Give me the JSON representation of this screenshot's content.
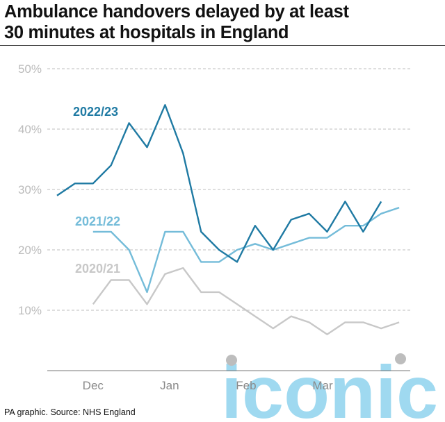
{
  "header": {
    "title_line1": "Ambulance handovers delayed by at least",
    "title_line2": "30 minutes at hospitals in England"
  },
  "footer": {
    "source": "PA graphic. Source: NHS England"
  },
  "watermark": {
    "text": "iconic",
    "color": "#8fd3ee"
  },
  "chart_data": {
    "type": "line",
    "ylim": [
      0,
      50
    ],
    "y_ticks": [
      10,
      20,
      30,
      40,
      50
    ],
    "y_tick_labels": [
      "10%",
      "20%",
      "30%",
      "40%",
      "50%"
    ],
    "x_tick_labels": [
      "Dec",
      "Jan",
      "Feb",
      "Mar"
    ],
    "x_tick_positions": [
      2,
      6.25,
      10.5,
      14.75
    ],
    "grid": true,
    "series": [
      {
        "name": "2022/23",
        "color": "#1f7aa3",
        "x": [
          0,
          1,
          2,
          3,
          4,
          5,
          6,
          7,
          8,
          9,
          10,
          11,
          12,
          13,
          14,
          15,
          16,
          17,
          18
        ],
        "values": [
          29,
          31,
          31,
          34,
          41,
          37,
          44,
          36,
          23,
          20,
          18,
          24,
          20,
          25,
          26,
          23,
          28,
          23,
          28
        ]
      },
      {
        "name": "2021/22",
        "color": "#74bcd9",
        "x": [
          2,
          3,
          4,
          5,
          6,
          7,
          8,
          9,
          10,
          11,
          12,
          13,
          14,
          15,
          16,
          17,
          18,
          19
        ],
        "values": [
          23,
          23,
          20,
          13,
          23,
          23,
          18,
          18,
          20,
          21,
          20,
          21,
          22,
          22,
          24,
          24,
          26,
          27
        ]
      },
      {
        "name": "2020/21",
        "color": "#c8c8c8",
        "x": [
          2,
          3,
          4,
          5,
          6,
          7,
          8,
          9,
          10,
          11,
          12,
          13,
          14,
          15,
          16,
          17,
          18,
          19
        ],
        "values": [
          11,
          15,
          15,
          11,
          16,
          17,
          13,
          13,
          11,
          9,
          7,
          9,
          8,
          6,
          8,
          8,
          7,
          8
        ]
      }
    ],
    "annotations": [
      {
        "text": "2022/23",
        "series": "2022/23"
      },
      {
        "text": "2021/22",
        "series": "2021/22"
      },
      {
        "text": "2020/21",
        "series": "2020/21"
      }
    ]
  }
}
